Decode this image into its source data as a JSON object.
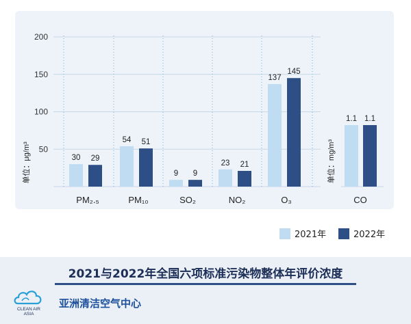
{
  "chart_data": {
    "type": "bar",
    "panels": [
      {
        "categories": [
          "PM₂.₅",
          "PM₁₀",
          "SO₂",
          "NO₂",
          "O₃"
        ],
        "series": [
          {
            "name": "2021年",
            "values": [
              30,
              54,
              9,
              23,
              137
            ]
          },
          {
            "name": "2022年",
            "values": [
              29,
              51,
              9,
              21,
              145
            ]
          }
        ],
        "ylabel": "单位：μg/m³",
        "ylim": [
          0,
          200
        ],
        "yticks": [
          50,
          100,
          150,
          200
        ],
        "value_labels": [
          [
            "30",
            "54",
            "9",
            "23",
            "137"
          ],
          [
            "29",
            "51",
            "9",
            "21",
            "145"
          ]
        ]
      },
      {
        "categories": [
          "CO"
        ],
        "series": [
          {
            "name": "2021年",
            "values": [
              1.1
            ]
          },
          {
            "name": "2022年",
            "values": [
              1.1
            ]
          }
        ],
        "ylabel": "单位：mg/m³",
        "value_labels": [
          [
            "1.1"
          ],
          [
            "1.1"
          ]
        ]
      }
    ],
    "legend": "bottom-right",
    "grid": true,
    "colors": {
      "2021年": "#bfdcf2",
      "2022年": "#2d4f86"
    }
  },
  "legend": {
    "s2021": "2021年",
    "s2022": "2022年"
  },
  "title": "2021与2022年全国六项标准污染物整体年评价浓度",
  "org_name": "亚洲清洁空气中心",
  "logo_text": {
    "line1": "CLEAN AIR",
    "line2": "ASIA"
  },
  "colors": {
    "accent": "#2d4f86",
    "light": "#bfdcf2",
    "panel": "#eef3f9"
  }
}
